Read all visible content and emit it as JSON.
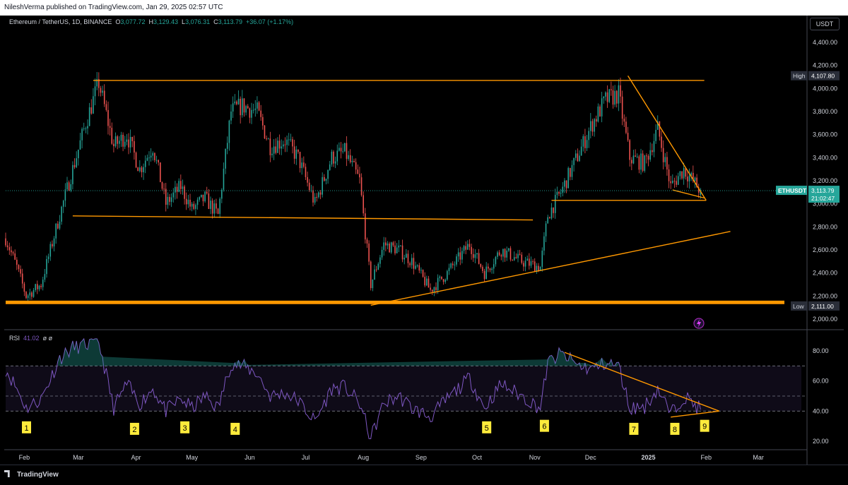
{
  "header": {
    "publisher": "NileshVerma published on TradingView.com, Jan 29, 2025 02:57 UTC"
  },
  "legend": {
    "symbol": "Ethereum / TetherUS, 1D, BINANCE",
    "o_label": "O",
    "o": "3,077.72",
    "h_label": "H",
    "h": "3,129.43",
    "l_label": "L",
    "l": "3,076.31",
    "c_label": "C",
    "c": "3,113.79",
    "change": "+36.07 (+1.17%)"
  },
  "currency_button": "USDT",
  "price_axis": {
    "ticks": [
      "4,400.00",
      "4,200.00",
      "4,000.00",
      "3,800.00",
      "3,600.00",
      "3,400.00",
      "3,200.00",
      "3,000.00",
      "2,800.00",
      "2,600.00",
      "2,400.00",
      "2,200.00",
      "2,000.00"
    ],
    "high_label": "High",
    "high_value": "4,107.80",
    "low_label": "Low",
    "low_value": "2,111.00",
    "symbol_tag": "ETHUSDT",
    "last_price": "3,113.79",
    "countdown": "21:02:47"
  },
  "rsi": {
    "label": "RSI",
    "value": "41.02",
    "extra": "ø ø",
    "ticks": [
      "80.00",
      "60.00",
      "40.00",
      "20.00"
    ],
    "annotations": [
      "1",
      "2",
      "3",
      "4",
      "5",
      "6",
      "7",
      "8",
      "9"
    ]
  },
  "time_axis": [
    "Feb",
    "Mar",
    "Apr",
    "May",
    "Jun",
    "Jul",
    "Aug",
    "Sep",
    "Oct",
    "Nov",
    "Dec",
    "2025",
    "Feb",
    "Mar"
  ],
  "footer": {
    "brand": "TradingView"
  },
  "colors": {
    "up": "#26a69a",
    "down": "#ef5350",
    "trendline": "#ff9800",
    "rsi": "#7e57c2",
    "annotation": "#ffeb3b"
  },
  "chart_data": [
    {
      "type": "candlestick",
      "title": "Ethereum / TetherUS, 1D, BINANCE",
      "x_range": [
        "2024-01-22",
        "2025-03-15"
      ],
      "ylim": [
        1900,
        4500
      ],
      "price_path": [
        {
          "date": "2024-01-22",
          "price": 2700
        },
        {
          "date": "2024-01-28",
          "price": 2450
        },
        {
          "date": "2024-02-02",
          "price": 2200
        },
        {
          "date": "2024-02-10",
          "price": 2300
        },
        {
          "date": "2024-02-20",
          "price": 2900
        },
        {
          "date": "2024-02-27",
          "price": 3300
        },
        {
          "date": "2024-03-05",
          "price": 3700
        },
        {
          "date": "2024-03-12",
          "price": 4050
        },
        {
          "date": "2024-03-20",
          "price": 3500
        },
        {
          "date": "2024-03-27",
          "price": 3600
        },
        {
          "date": "2024-04-03",
          "price": 3300
        },
        {
          "date": "2024-04-10",
          "price": 3500
        },
        {
          "date": "2024-04-17",
          "price": 3000
        },
        {
          "date": "2024-04-25",
          "price": 3150
        },
        {
          "date": "2024-05-01",
          "price": 2950
        },
        {
          "date": "2024-05-08",
          "price": 3050
        },
        {
          "date": "2024-05-15",
          "price": 2900
        },
        {
          "date": "2024-05-22",
          "price": 3800
        },
        {
          "date": "2024-05-28",
          "price": 3850
        },
        {
          "date": "2024-06-05",
          "price": 3800
        },
        {
          "date": "2024-06-12",
          "price": 3500
        },
        {
          "date": "2024-06-20",
          "price": 3550
        },
        {
          "date": "2024-06-27",
          "price": 3400
        },
        {
          "date": "2024-07-06",
          "price": 3000
        },
        {
          "date": "2024-07-15",
          "price": 3400
        },
        {
          "date": "2024-07-22",
          "price": 3450
        },
        {
          "date": "2024-07-30",
          "price": 3200
        },
        {
          "date": "2024-08-05",
          "price": 2300
        },
        {
          "date": "2024-08-12",
          "price": 2650
        },
        {
          "date": "2024-08-20",
          "price": 2600
        },
        {
          "date": "2024-08-27",
          "price": 2500
        },
        {
          "date": "2024-09-06",
          "price": 2250
        },
        {
          "date": "2024-09-15",
          "price": 2400
        },
        {
          "date": "2024-09-27",
          "price": 2650
        },
        {
          "date": "2024-10-05",
          "price": 2400
        },
        {
          "date": "2024-10-14",
          "price": 2600
        },
        {
          "date": "2024-10-25",
          "price": 2500
        },
        {
          "date": "2024-11-04",
          "price": 2450
        },
        {
          "date": "2024-11-08",
          "price": 2900
        },
        {
          "date": "2024-11-15",
          "price": 3100
        },
        {
          "date": "2024-11-25",
          "price": 3450
        },
        {
          "date": "2024-12-02",
          "price": 3700
        },
        {
          "date": "2024-12-09",
          "price": 3900
        },
        {
          "date": "2024-12-16",
          "price": 3950
        },
        {
          "date": "2024-12-22",
          "price": 3400
        },
        {
          "date": "2024-12-30",
          "price": 3350
        },
        {
          "date": "2025-01-06",
          "price": 3650
        },
        {
          "date": "2025-01-13",
          "price": 3150
        },
        {
          "date": "2025-01-20",
          "price": 3300
        },
        {
          "date": "2025-01-29",
          "price": 3113.79
        }
      ],
      "last": {
        "open": 3077.72,
        "high": 3129.43,
        "low": 3076.31,
        "close": 3113.79,
        "change": 36.07,
        "change_pct": 1.17
      },
      "range_high": 4107.8,
      "range_low": 2111.0,
      "trendlines": [
        {
          "from": {
            "date": "2024-03-09",
            "price": 4070
          },
          "to": {
            "date": "2025-01-31",
            "price": 4070
          }
        },
        {
          "from": {
            "date": "2024-02-27",
            "price": 2895
          },
          "to": {
            "date": "2024-10-31",
            "price": 2860
          }
        },
        {
          "from": {
            "date": "2024-08-05",
            "price": 2120
          },
          "to": {
            "date": "2025-02-14",
            "price": 2760
          }
        },
        {
          "from": {
            "date": "2024-11-10",
            "price": 3030
          },
          "to": {
            "date": "2025-02-01",
            "price": 3030
          }
        },
        {
          "from": {
            "date": "2024-12-21",
            "price": 4110
          },
          "to": {
            "date": "2025-02-01",
            "price": 3030
          }
        },
        {
          "from": {
            "date": "2025-01-14",
            "price": 3120
          },
          "to": {
            "date": "2025-01-31",
            "price": 3050
          }
        }
      ],
      "support_zone": {
        "low": 2130,
        "high": 2160,
        "x_range": [
          "2024-01-22",
          "2025-03-15"
        ]
      }
    },
    {
      "type": "line",
      "title": "RSI",
      "current": 41.02,
      "ylim": [
        15,
        90
      ],
      "levels": [
        70,
        50,
        40
      ],
      "series_path": [
        {
          "date": "2024-01-22",
          "value": 68
        },
        {
          "date": "2024-01-28",
          "value": 55
        },
        {
          "date": "2024-02-02",
          "value": 42
        },
        {
          "date": "2024-02-10",
          "value": 48
        },
        {
          "date": "2024-02-20",
          "value": 75
        },
        {
          "date": "2024-02-27",
          "value": 82
        },
        {
          "date": "2024-03-05",
          "value": 84
        },
        {
          "date": "2024-03-12",
          "value": 86
        },
        {
          "date": "2024-03-20",
          "value": 42
        },
        {
          "date": "2024-03-27",
          "value": 58
        },
        {
          "date": "2024-04-03",
          "value": 45
        },
        {
          "date": "2024-04-10",
          "value": 55
        },
        {
          "date": "2024-04-17",
          "value": 40
        },
        {
          "date": "2024-04-25",
          "value": 48
        },
        {
          "date": "2024-05-01",
          "value": 42
        },
        {
          "date": "2024-05-08",
          "value": 50
        },
        {
          "date": "2024-05-15",
          "value": 42
        },
        {
          "date": "2024-05-22",
          "value": 72
        },
        {
          "date": "2024-05-28",
          "value": 70
        },
        {
          "date": "2024-06-05",
          "value": 65
        },
        {
          "date": "2024-06-12",
          "value": 50
        },
        {
          "date": "2024-06-20",
          "value": 52
        },
        {
          "date": "2024-06-27",
          "value": 47
        },
        {
          "date": "2024-07-06",
          "value": 33
        },
        {
          "date": "2024-07-15",
          "value": 55
        },
        {
          "date": "2024-07-22",
          "value": 56
        },
        {
          "date": "2024-07-30",
          "value": 45
        },
        {
          "date": "2024-08-05",
          "value": 22
        },
        {
          "date": "2024-08-12",
          "value": 45
        },
        {
          "date": "2024-08-20",
          "value": 50
        },
        {
          "date": "2024-08-27",
          "value": 42
        },
        {
          "date": "2024-09-06",
          "value": 36
        },
        {
          "date": "2024-09-15",
          "value": 48
        },
        {
          "date": "2024-09-27",
          "value": 62
        },
        {
          "date": "2024-10-05",
          "value": 42
        },
        {
          "date": "2024-10-14",
          "value": 58
        },
        {
          "date": "2024-10-25",
          "value": 50
        },
        {
          "date": "2024-11-04",
          "value": 42
        },
        {
          "date": "2024-11-08",
          "value": 72
        },
        {
          "date": "2024-11-15",
          "value": 78
        },
        {
          "date": "2024-11-25",
          "value": 70
        },
        {
          "date": "2024-12-02",
          "value": 68
        },
        {
          "date": "2024-12-09",
          "value": 72
        },
        {
          "date": "2024-12-16",
          "value": 70
        },
        {
          "date": "2024-12-22",
          "value": 42
        },
        {
          "date": "2024-12-30",
          "value": 43
        },
        {
          "date": "2025-01-06",
          "value": 55
        },
        {
          "date": "2025-01-13",
          "value": 38
        },
        {
          "date": "2025-01-20",
          "value": 50
        },
        {
          "date": "2025-01-29",
          "value": 41.02
        }
      ],
      "trendlines": [
        {
          "from": {
            "date": "2024-11-17",
            "value": 79
          },
          "to": {
            "date": "2025-02-08",
            "value": 40
          }
        },
        {
          "from": {
            "date": "2025-01-13",
            "value": 36
          },
          "to": {
            "date": "2025-02-08",
            "value": 40
          }
        }
      ],
      "annotations": [
        {
          "label": "1",
          "date": "2024-02-02",
          "value": 29
        },
        {
          "label": "2",
          "date": "2024-03-31",
          "value": 28
        },
        {
          "label": "3",
          "date": "2024-04-27",
          "value": 29
        },
        {
          "label": "4",
          "date": "2024-05-24",
          "value": 28
        },
        {
          "label": "5",
          "date": "2024-10-06",
          "value": 29
        },
        {
          "label": "6",
          "date": "2024-11-06",
          "value": 30
        },
        {
          "label": "7",
          "date": "2024-12-24",
          "value": 28
        },
        {
          "label": "8",
          "date": "2025-01-15",
          "value": 28
        },
        {
          "label": "9",
          "date": "2025-01-31",
          "value": 30
        }
      ]
    }
  ]
}
